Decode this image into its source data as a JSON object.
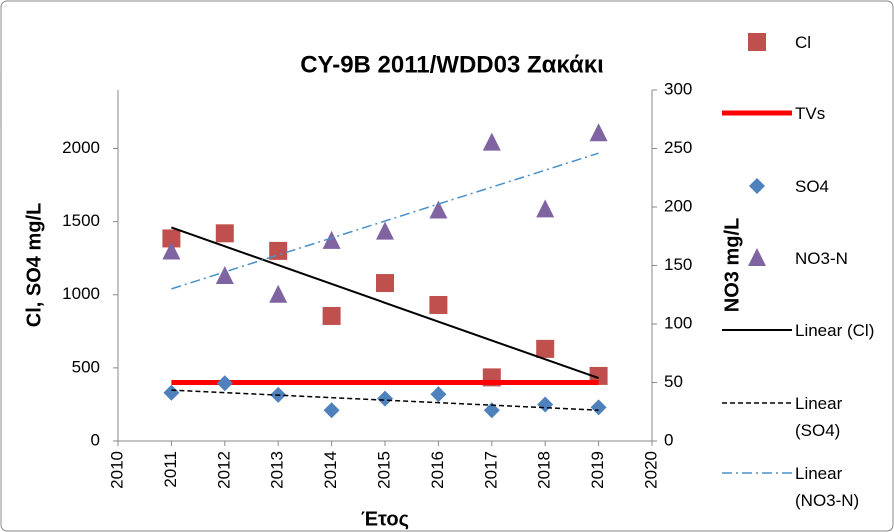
{
  "chart_data": {
    "type": "scatter",
    "title": "CY-9B 2011/WDD03 Ζακάκι",
    "x_label": "Έτος",
    "y_label": "Cl, SO4 mg/L",
    "y2_label": "NO3 mg/L",
    "xlim": [
      2010,
      2020
    ],
    "xticks": [
      2010,
      2011,
      2012,
      2013,
      2014,
      2015,
      2016,
      2017,
      2018,
      2019,
      2020
    ],
    "ylim": [
      0,
      2400
    ],
    "yticks": [
      0,
      500,
      1000,
      1500,
      2000
    ],
    "y2lim": [
      0,
      300
    ],
    "y2ticks": [
      0,
      50,
      100,
      150,
      200,
      250,
      300
    ],
    "grid": false,
    "legend": "right",
    "series": [
      {
        "name": "Cl",
        "color": "#c0504d",
        "marker": "square",
        "x": [
          2011,
          2012,
          2013,
          2014,
          2015,
          2016,
          2017,
          2018,
          2019
        ],
        "values": [
          1385,
          1420,
          1300,
          855,
          1080,
          930,
          435,
          630,
          445
        ]
      },
      {
        "name": "TVs",
        "color": "#ff0000",
        "marker": "line",
        "dash": "solid",
        "width": 5,
        "x": [
          2011,
          2012,
          2013,
          2014,
          2015,
          2016,
          2017,
          2018,
          2019
        ],
        "values": [
          400,
          400,
          400,
          400,
          400,
          400,
          400,
          400,
          400
        ]
      },
      {
        "name": "SO4",
        "color": "#4f81bd",
        "marker": "diamond",
        "x": [
          2011,
          2012,
          2013,
          2014,
          2015,
          2016,
          2017,
          2018,
          2019
        ],
        "values": [
          330,
          395,
          315,
          210,
          290,
          320,
          210,
          250,
          230
        ]
      },
      {
        "name": "NO3-N",
        "color": "#8064a2",
        "marker": "triangle",
        "axis": "y2",
        "x": [
          2011,
          2012,
          2013,
          2014,
          2015,
          2016,
          2017,
          2018,
          2019
        ],
        "values": [
          162,
          141,
          125,
          171,
          179,
          197,
          255,
          198,
          263
        ]
      },
      {
        "name": "Linear (Cl)",
        "color": "#000000",
        "marker": "line",
        "dash": "solid",
        "width": 2,
        "x": [
          2011,
          2019
        ],
        "values": [
          1460,
          430
        ]
      },
      {
        "name": "Linear (SO4)",
        "color": "#000000",
        "marker": "line",
        "dash": "dashed",
        "width": 1.5,
        "x": [
          2011,
          2019
        ],
        "values": [
          348,
          211
        ]
      },
      {
        "name": "Linear (NO3-N)",
        "color": "#4a90c8",
        "marker": "line",
        "dash": "dashdot",
        "width": 1.5,
        "axis": "y2",
        "x": [
          2011,
          2019
        ],
        "values": [
          130,
          246
        ]
      }
    ]
  }
}
